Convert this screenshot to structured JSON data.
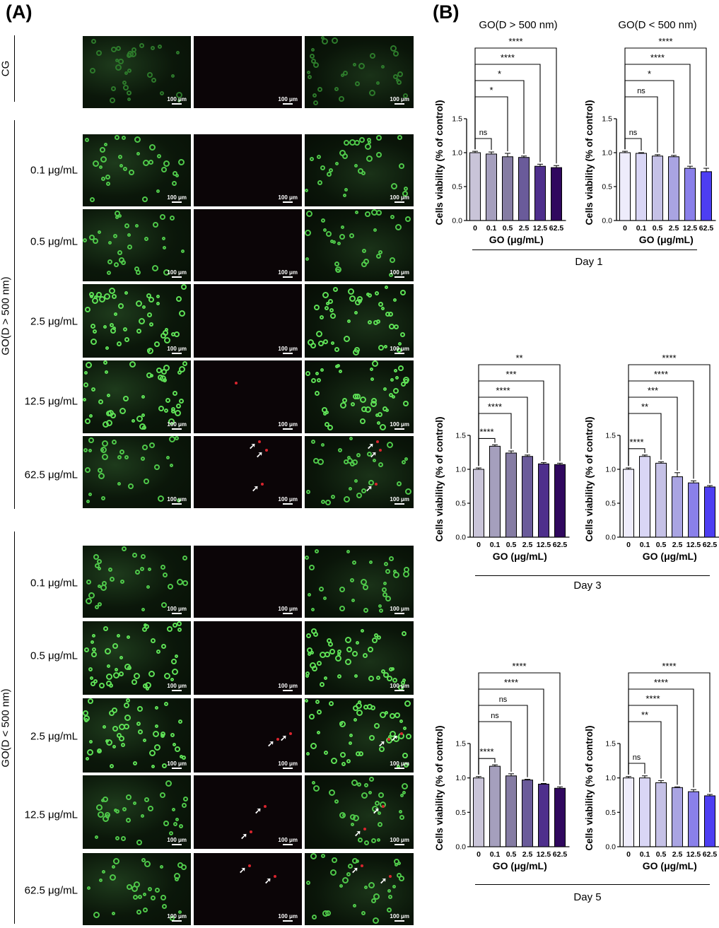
{
  "panel_a": {
    "letter": "(A)",
    "groups": {
      "cg": "CG",
      "large": "GO(D > 500 nm)",
      "small": "GO(D < 500 nm)"
    },
    "concentrations": [
      "0.1 μg/mL",
      "0.5 μg/mL",
      "2.5 μg/mL",
      "12.5 μg/mL",
      "62.5 μg/mL"
    ],
    "scale_bar": "100 μm"
  },
  "panel_b": {
    "letter": "(B)",
    "column_titles": [
      "GO(D > 500 nm)",
      "GO(D < 500 nm)"
    ],
    "days": [
      "Day 1",
      "Day 3",
      "Day 5"
    ]
  },
  "colors": {
    "large": [
      "#c9c4d8",
      "#a59fbd",
      "#857ca3",
      "#6a5b9a",
      "#4e2f8c",
      "#30085e"
    ],
    "small": [
      "#eeecfb",
      "#d9d6f5",
      "#c5c1e6",
      "#a9a4e2",
      "#8a80ea",
      "#4d3ef2"
    ]
  },
  "chart_data": [
    {
      "type": "bar",
      "id": "day1-large",
      "categories": [
        "0",
        "0.1",
        "0.5",
        "2.5",
        "12.5",
        "62.5"
      ],
      "values": [
        1.0,
        0.98,
        0.94,
        0.93,
        0.8,
        0.78
      ],
      "errors": [
        0.02,
        0.03,
        0.05,
        0.02,
        0.03,
        0.03
      ],
      "xlabel": "GO (μg/mL)",
      "ylabel": "Cells viability (% of control)",
      "ylim": [
        0,
        1.5
      ],
      "yticks": [
        "0.0",
        "0.5",
        "1.0",
        "1.5"
      ],
      "significance": [
        {
          "to": 1,
          "label": "ns"
        },
        {
          "to": 2,
          "label": "*"
        },
        {
          "to": 3,
          "label": "*"
        },
        {
          "to": 4,
          "label": "****"
        },
        {
          "to": 5,
          "label": "****"
        }
      ]
    },
    {
      "type": "bar",
      "id": "day1-small",
      "categories": [
        "0",
        "0.1",
        "0.5",
        "2.5",
        "12.5",
        "62.5"
      ],
      "values": [
        1.0,
        0.99,
        0.95,
        0.94,
        0.77,
        0.72
      ],
      "errors": [
        0.02,
        0.01,
        0.02,
        0.02,
        0.03,
        0.05
      ],
      "xlabel": "GO (μg/mL)",
      "ylabel": "Cells viability (% of control)",
      "ylim": [
        0,
        1.5
      ],
      "yticks": [
        "0.0",
        "0.5",
        "1.0",
        "1.5"
      ],
      "significance": [
        {
          "to": 1,
          "label": "ns"
        },
        {
          "to": 2,
          "label": "ns"
        },
        {
          "to": 3,
          "label": "*"
        },
        {
          "to": 4,
          "label": "****"
        },
        {
          "to": 5,
          "label": "****"
        }
      ]
    },
    {
      "type": "bar",
      "id": "day3-large",
      "categories": [
        "0",
        "0.1",
        "0.5",
        "2.5",
        "12.5",
        "62.5"
      ],
      "values": [
        1.0,
        1.34,
        1.24,
        1.19,
        1.08,
        1.07
      ],
      "errors": [
        0.02,
        0.02,
        0.03,
        0.02,
        0.02,
        0.02
      ],
      "xlabel": "GO (μg/mL)",
      "ylabel": "Cells viability (% of control)",
      "ylim": [
        0,
        1.5
      ],
      "yticks": [
        "0.0",
        "0.5",
        "1.0",
        "1.5"
      ],
      "significance": [
        {
          "to": 1,
          "label": "****"
        },
        {
          "to": 2,
          "label": "****"
        },
        {
          "to": 3,
          "label": "****"
        },
        {
          "to": 4,
          "label": "***"
        },
        {
          "to": 5,
          "label": "**"
        }
      ]
    },
    {
      "type": "bar",
      "id": "day3-small",
      "categories": [
        "0",
        "0.1",
        "0.5",
        "2.5",
        "12.5",
        "62.5"
      ],
      "values": [
        1.0,
        1.19,
        1.09,
        0.89,
        0.8,
        0.74
      ],
      "errors": [
        0.02,
        0.02,
        0.02,
        0.06,
        0.03,
        0.02
      ],
      "xlabel": "GO (μg/mL)",
      "ylabel": "Cells viability (% of control)",
      "ylim": [
        0,
        1.5
      ],
      "yticks": [
        "0.0",
        "0.5",
        "1.0",
        "1.5"
      ],
      "significance": [
        {
          "to": 1,
          "label": "****"
        },
        {
          "to": 2,
          "label": "**"
        },
        {
          "to": 3,
          "label": "***"
        },
        {
          "to": 4,
          "label": "****"
        },
        {
          "to": 5,
          "label": "****"
        }
      ]
    },
    {
      "type": "bar",
      "id": "day5-large",
      "categories": [
        "0",
        "0.1",
        "0.5",
        "2.5",
        "12.5",
        "62.5"
      ],
      "values": [
        1.0,
        1.17,
        1.03,
        0.97,
        0.91,
        0.85
      ],
      "errors": [
        0.02,
        0.02,
        0.03,
        0.01,
        0.01,
        0.02
      ],
      "xlabel": "GO (μg/mL)",
      "ylabel": "Cells viability (% of control)",
      "ylim": [
        0,
        1.5
      ],
      "yticks": [
        "0.0",
        "0.5",
        "1.0",
        "1.5"
      ],
      "significance": [
        {
          "to": 1,
          "label": "****"
        },
        {
          "to": 2,
          "label": "ns"
        },
        {
          "to": 3,
          "label": "ns"
        },
        {
          "to": 4,
          "label": "****"
        },
        {
          "to": 5,
          "label": "****"
        }
      ]
    },
    {
      "type": "bar",
      "id": "day5-small",
      "categories": [
        "0",
        "0.1",
        "0.5",
        "2.5",
        "12.5",
        "62.5"
      ],
      "values": [
        1.0,
        1.0,
        0.93,
        0.86,
        0.8,
        0.74
      ],
      "errors": [
        0.02,
        0.03,
        0.03,
        0.01,
        0.03,
        0.02
      ],
      "xlabel": "GO (μg/mL)",
      "ylabel": "Cells viability (% of control)",
      "ylim": [
        0,
        1.5
      ],
      "yticks": [
        "0.0",
        "0.5",
        "1.0",
        "1.5"
      ],
      "significance": [
        {
          "to": 1,
          "label": "ns"
        },
        {
          "to": 2,
          "label": "**"
        },
        {
          "to": 3,
          "label": "****"
        },
        {
          "to": 4,
          "label": "****"
        },
        {
          "to": 5,
          "label": "****"
        }
      ]
    }
  ]
}
